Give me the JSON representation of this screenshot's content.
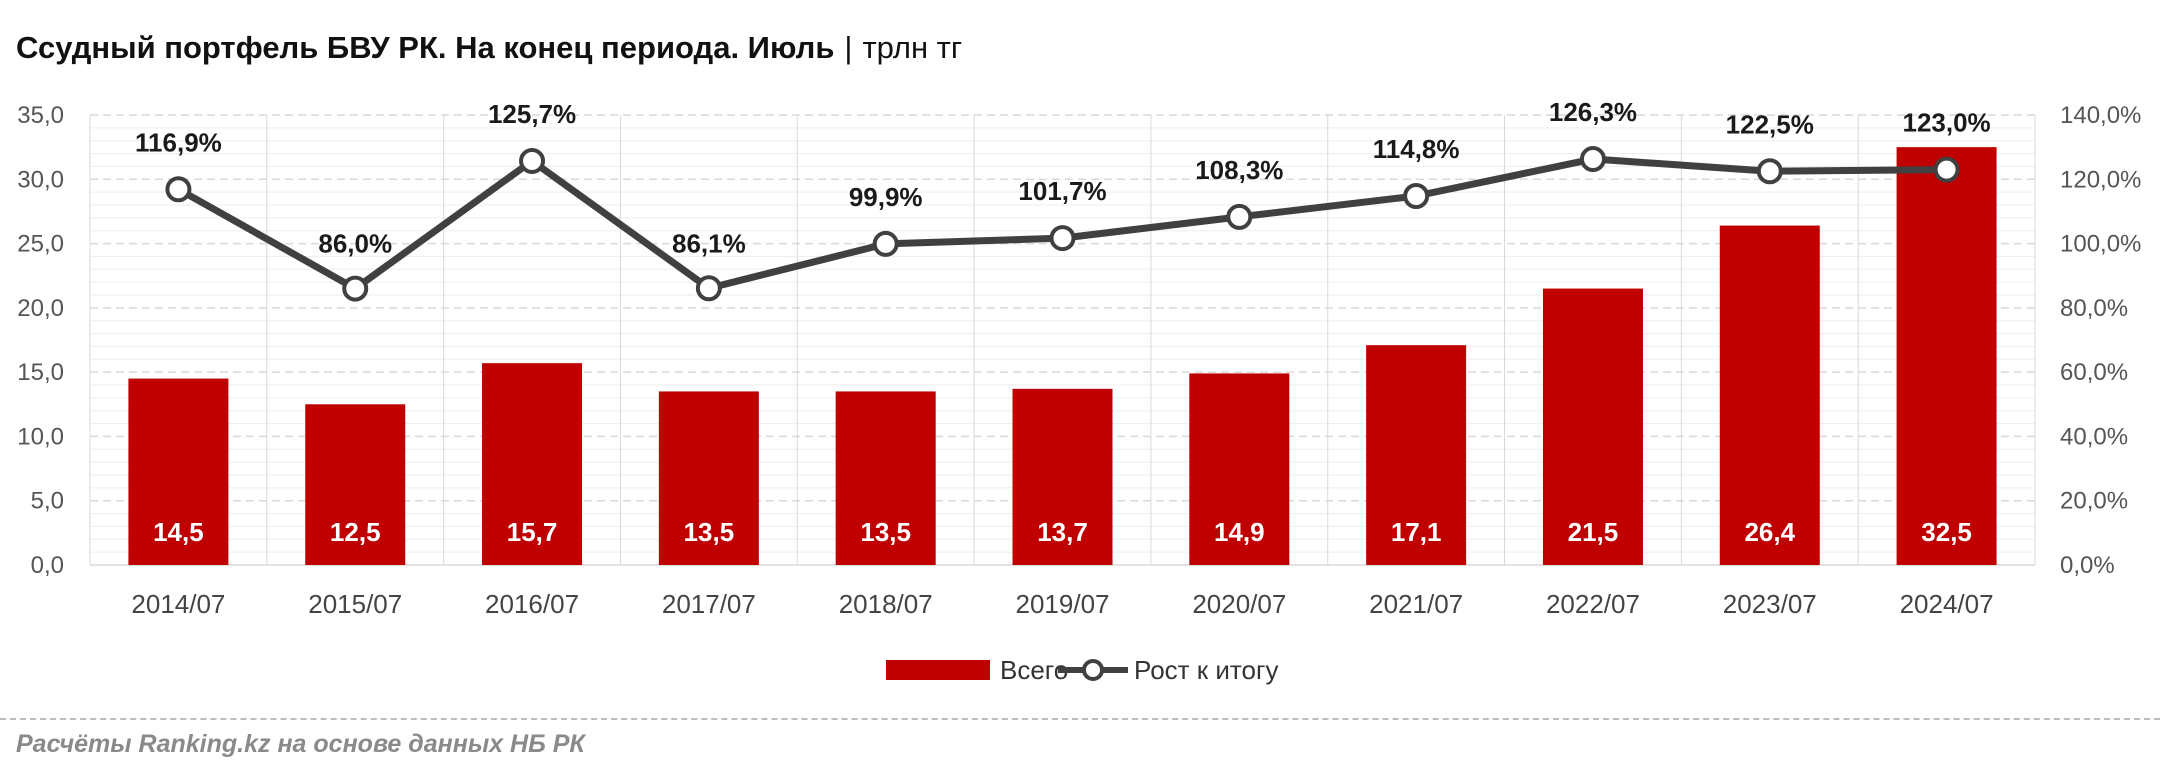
{
  "title": {
    "main": "Ссудный портфель БВУ РК. На конец периода. Июль",
    "separator": "|",
    "unit": "трлн тг"
  },
  "source": "Расчёты Ranking.kz на основе данных НБ РК",
  "colors": {
    "bar": "#c00000",
    "line": "#404040",
    "marker_fill": "#ffffff",
    "grid_major": "#d9d9d9",
    "grid_minor": "#ededed"
  },
  "chart_data": {
    "type": "bar",
    "categories": [
      "2014/07",
      "2015/07",
      "2016/07",
      "2017/07",
      "2018/07",
      "2019/07",
      "2020/07",
      "2021/07",
      "2022/07",
      "2023/07",
      "2024/07"
    ],
    "series": [
      {
        "name": "Всего",
        "type": "bar",
        "axis": "left",
        "values": [
          14.5,
          12.5,
          15.7,
          13.5,
          13.5,
          13.7,
          14.9,
          17.1,
          21.5,
          26.4,
          32.5
        ],
        "labels": [
          "14,5",
          "12,5",
          "15,7",
          "13,5",
          "13,5",
          "13,7",
          "14,9",
          "17,1",
          "21,5",
          "26,4",
          "32,5"
        ]
      },
      {
        "name": "Рост к итогу",
        "type": "line",
        "axis": "right",
        "values": [
          116.9,
          86.0,
          125.7,
          86.1,
          99.9,
          101.7,
          108.3,
          114.8,
          126.3,
          122.5,
          123.0
        ],
        "labels": [
          "116,9%",
          "86,0%",
          "125,7%",
          "86,1%",
          "99,9%",
          "101,7%",
          "108,3%",
          "114,8%",
          "126,3%",
          "122,5%",
          "123,0%"
        ]
      }
    ],
    "left_axis": {
      "min": 0,
      "max": 35,
      "ticks": [
        0,
        5,
        10,
        15,
        20,
        25,
        30,
        35
      ],
      "tick_labels": [
        "0,0",
        "5,0",
        "10,0",
        "15,0",
        "20,0",
        "25,0",
        "30,0",
        "35,0"
      ]
    },
    "right_axis": {
      "min": 0,
      "max": 140,
      "ticks": [
        0,
        20,
        40,
        60,
        80,
        100,
        120,
        140
      ],
      "tick_labels": [
        "0,0%",
        "20,0%",
        "40,0%",
        "60,0%",
        "80,0%",
        "100,0%",
        "120,0%",
        "140,0%"
      ]
    },
    "grid": true,
    "legend": "bottom-center"
  }
}
